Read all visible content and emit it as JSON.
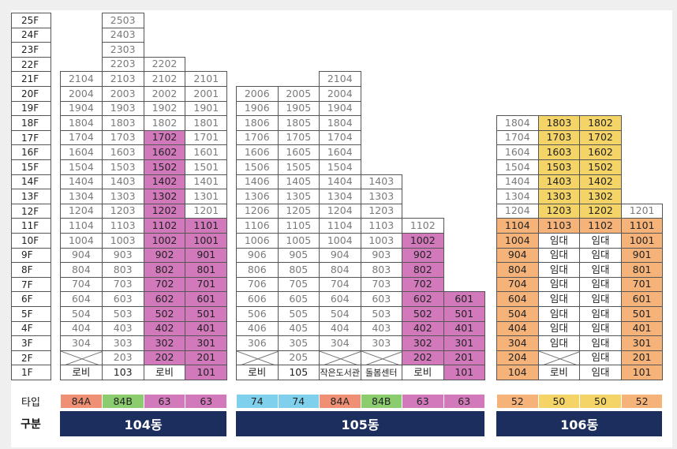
{
  "floors": [
    "25F",
    "24F",
    "23F",
    "22F",
    "21F",
    "20F",
    "19F",
    "18F",
    "17F",
    "16F",
    "15F",
    "14F",
    "13F",
    "12F",
    "11F",
    "10F",
    "9F",
    "8F",
    "7F",
    "6F",
    "5F",
    "4F",
    "3F",
    "2F",
    "1F"
  ],
  "buildings": [
    {
      "name": "104동",
      "types": [
        {
          "label": "84A",
          "color": "#ef8f74"
        },
        {
          "label": "84B",
          "color": "#8bcc6e"
        },
        {
          "label": "63",
          "color": "#d279bc"
        },
        {
          "label": "63",
          "color": "#d279bc"
        }
      ],
      "rows": [
        [
          "",
          "2503",
          "",
          ""
        ],
        [
          "",
          "2403",
          "",
          ""
        ],
        [
          "",
          "2303",
          "",
          ""
        ],
        [
          "",
          "2203",
          "2202",
          ""
        ],
        [
          "2104",
          "2103",
          "2102",
          "2101"
        ],
        [
          "2004",
          "2003",
          "2002",
          "2001"
        ],
        [
          "1904",
          "1903",
          "1902",
          "1901"
        ],
        [
          "1804",
          "1803",
          "1802",
          "1801"
        ],
        [
          "1704",
          "1703",
          "1702",
          "1701"
        ],
        [
          "1604",
          "1603",
          "1602",
          "1601"
        ],
        [
          "1504",
          "1503",
          "1502",
          "1501"
        ],
        [
          "1404",
          "1403",
          "1402",
          "1401"
        ],
        [
          "1304",
          "1303",
          "1302",
          "1301"
        ],
        [
          "1204",
          "1203",
          "1202",
          "1201"
        ],
        [
          "1104",
          "1103",
          "1102",
          "1101"
        ],
        [
          "1004",
          "1003",
          "1002",
          "1001"
        ],
        [
          "904",
          "903",
          "902",
          "901"
        ],
        [
          "804",
          "803",
          "802",
          "801"
        ],
        [
          "704",
          "703",
          "702",
          "701"
        ],
        [
          "604",
          "603",
          "602",
          "601"
        ],
        [
          "504",
          "503",
          "502",
          "501"
        ],
        [
          "404",
          "403",
          "402",
          "401"
        ],
        [
          "304",
          "303",
          "302",
          "301"
        ],
        [
          "X",
          "203",
          "202",
          "201"
        ],
        [
          "로비",
          "103",
          "로비",
          "101"
        ]
      ]
    },
    {
      "name": "105동",
      "types": [
        {
          "label": "74",
          "color": "#7fd0ec"
        },
        {
          "label": "74",
          "color": "#7fd0ec"
        },
        {
          "label": "84A",
          "color": "#ef8f74"
        },
        {
          "label": "84B",
          "color": "#8bcc6e"
        },
        {
          "label": "63",
          "color": "#d279bc"
        },
        {
          "label": "63",
          "color": "#d279bc"
        }
      ],
      "rows": [
        [
          "",
          "",
          "",
          "",
          "",
          ""
        ],
        [
          "",
          "",
          "",
          "",
          "",
          ""
        ],
        [
          "",
          "",
          "",
          "",
          "",
          ""
        ],
        [
          "",
          "",
          "",
          "",
          "",
          ""
        ],
        [
          "",
          "",
          "2104",
          "",
          "",
          ""
        ],
        [
          "2006",
          "2005",
          "2004",
          "",
          "",
          ""
        ],
        [
          "1906",
          "1905",
          "1904",
          "",
          "",
          ""
        ],
        [
          "1806",
          "1805",
          "1804",
          "",
          "",
          ""
        ],
        [
          "1706",
          "1705",
          "1704",
          "",
          "",
          ""
        ],
        [
          "1606",
          "1605",
          "1604",
          "",
          "",
          ""
        ],
        [
          "1506",
          "1505",
          "1504",
          "",
          "",
          ""
        ],
        [
          "1406",
          "1405",
          "1404",
          "1403",
          "",
          ""
        ],
        [
          "1306",
          "1305",
          "1304",
          "1303",
          "",
          ""
        ],
        [
          "1206",
          "1205",
          "1204",
          "1203",
          "",
          ""
        ],
        [
          "1106",
          "1105",
          "1104",
          "1103",
          "1102",
          ""
        ],
        [
          "1006",
          "1005",
          "1004",
          "1003",
          "1002",
          ""
        ],
        [
          "906",
          "905",
          "904",
          "903",
          "902",
          ""
        ],
        [
          "806",
          "805",
          "804",
          "803",
          "802",
          ""
        ],
        [
          "706",
          "705",
          "704",
          "703",
          "702",
          ""
        ],
        [
          "606",
          "605",
          "604",
          "603",
          "602",
          "601"
        ],
        [
          "506",
          "505",
          "504",
          "503",
          "502",
          "501"
        ],
        [
          "406",
          "405",
          "404",
          "403",
          "402",
          "401"
        ],
        [
          "306",
          "305",
          "304",
          "303",
          "302",
          "301"
        ],
        [
          "X",
          "205",
          "X",
          "X",
          "202",
          "201"
        ],
        [
          "로비",
          "105",
          "작은도서관",
          "돌봄센터",
          "로비",
          "101"
        ]
      ]
    },
    {
      "name": "106동",
      "types": [
        {
          "label": "52",
          "color": "#f5b37a"
        },
        {
          "label": "50",
          "color": "#f4d466"
        },
        {
          "label": "50",
          "color": "#f4d466"
        },
        {
          "label": "52",
          "color": "#f5b37a"
        }
      ],
      "rows": [
        [
          "",
          "",
          "",
          ""
        ],
        [
          "",
          "",
          "",
          ""
        ],
        [
          "",
          "",
          "",
          ""
        ],
        [
          "",
          "",
          "",
          ""
        ],
        [
          "",
          "",
          "",
          ""
        ],
        [
          "",
          "",
          "",
          ""
        ],
        [
          "",
          "",
          "",
          ""
        ],
        [
          "1804",
          "1803",
          "1802",
          ""
        ],
        [
          "1704",
          "1703",
          "1702",
          ""
        ],
        [
          "1604",
          "1603",
          "1602",
          ""
        ],
        [
          "1504",
          "1503",
          "1502",
          ""
        ],
        [
          "1404",
          "1403",
          "1402",
          ""
        ],
        [
          "1304",
          "1303",
          "1302",
          ""
        ],
        [
          "1204",
          "1203",
          "1202",
          "1201"
        ],
        [
          "1104",
          "1103",
          "1102",
          "1101"
        ],
        [
          "1004",
          "임대",
          "임대",
          "1001"
        ],
        [
          "904",
          "임대",
          "임대",
          "901"
        ],
        [
          "804",
          "임대",
          "임대",
          "801"
        ],
        [
          "704",
          "임대",
          "임대",
          "701"
        ],
        [
          "604",
          "임대",
          "임대",
          "601"
        ],
        [
          "504",
          "임대",
          "임대",
          "501"
        ],
        [
          "404",
          "임대",
          "임대",
          "401"
        ],
        [
          "304",
          "임대",
          "임대",
          "301"
        ],
        [
          "204",
          "X",
          "임대",
          "201"
        ],
        [
          "104",
          "로비",
          "임대",
          "101"
        ]
      ]
    }
  ],
  "labels": {
    "type_label": "타입",
    "division_label": "구분"
  },
  "highlight_colors": {
    "pink": "#d279bc",
    "yellow": "#f4d466",
    "orange": "#f5b37a"
  }
}
